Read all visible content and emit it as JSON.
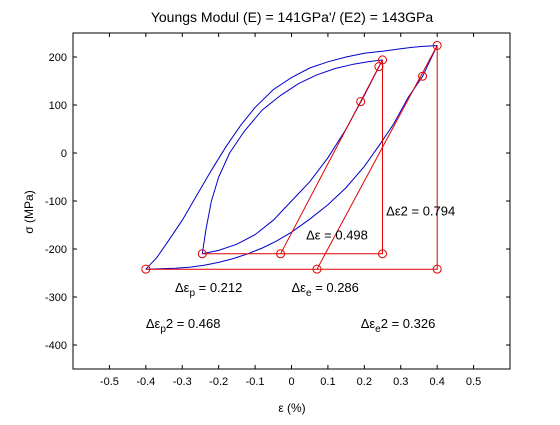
{
  "chart_data": {
    "type": "line",
    "title": "Youngs Modul (E) = 141GPa'/ (E2) = 143GPa",
    "xlabel": "ε (%)",
    "ylabel": "σ (MPa)",
    "xlim": [
      -0.6,
      0.6
    ],
    "ylim": [
      -450,
      250
    ],
    "xticks": [
      -0.5,
      -0.4,
      -0.3,
      -0.2,
      -0.1,
      0,
      0.1,
      0.2,
      0.3,
      0.4,
      0.5
    ],
    "xtick_labels": [
      "-0.5",
      "-0.4",
      "-0.3",
      "-0.2",
      "-0.1",
      "0",
      "0.1",
      "0.2",
      "0.3",
      "0.4",
      "0.5"
    ],
    "yticks": [
      200,
      100,
      0,
      -100,
      -200,
      -300,
      -400
    ],
    "ytick_labels": [
      "200",
      "100",
      "0",
      "-100",
      "-200",
      "-300",
      "-400"
    ],
    "grid": false,
    "colors": {
      "curve": "#0000cc",
      "construction": "#e00000",
      "axes": "#000000"
    },
    "series": [
      {
        "color": "#0000cc",
        "points": [
          [
            -0.4,
            -242
          ],
          [
            -0.37,
            -218
          ],
          [
            -0.34,
            -185
          ],
          [
            -0.3,
            -140
          ],
          [
            -0.26,
            -88
          ],
          [
            -0.22,
            -36
          ],
          [
            -0.18,
            13
          ],
          [
            -0.14,
            57
          ],
          [
            -0.1,
            95
          ],
          [
            -0.05,
            132
          ],
          [
            0.0,
            157
          ],
          [
            0.05,
            177
          ],
          [
            0.1,
            190
          ],
          [
            0.15,
            200
          ],
          [
            0.2,
            208
          ],
          [
            0.25,
            212
          ],
          [
            0.3,
            217
          ],
          [
            0.33,
            220
          ],
          [
            0.36,
            222
          ],
          [
            0.38,
            223
          ],
          [
            0.4,
            224
          ]
        ]
      },
      {
        "color": "#0000cc",
        "points": [
          [
            0.4,
            224
          ],
          [
            0.36,
            160
          ],
          [
            0.32,
            115
          ],
          [
            0.28,
            60
          ],
          [
            0.24,
            15
          ],
          [
            0.2,
            -28
          ],
          [
            0.15,
            -72
          ],
          [
            0.1,
            -108
          ],
          [
            0.05,
            -138
          ],
          [
            0.0,
            -165
          ],
          [
            -0.04,
            -183
          ],
          [
            -0.08,
            -198
          ],
          [
            -0.12,
            -210
          ],
          [
            -0.16,
            -220
          ],
          [
            -0.2,
            -228
          ],
          [
            -0.24,
            -234
          ],
          [
            -0.28,
            -238
          ],
          [
            -0.32,
            -240
          ],
          [
            -0.36,
            -241
          ],
          [
            -0.4,
            -242
          ]
        ]
      },
      {
        "color": "#0000cc",
        "points": [
          [
            -0.245,
            -210
          ],
          [
            -0.235,
            -160
          ],
          [
            -0.22,
            -100
          ],
          [
            -0.2,
            -50
          ],
          [
            -0.17,
            0
          ],
          [
            -0.13,
            45
          ],
          [
            -0.08,
            90
          ],
          [
            -0.03,
            120
          ],
          [
            0.02,
            145
          ],
          [
            0.07,
            163
          ],
          [
            0.12,
            176
          ],
          [
            0.17,
            185
          ],
          [
            0.21,
            190
          ],
          [
            0.25,
            194
          ]
        ]
      },
      {
        "color": "#0000cc",
        "points": [
          [
            0.25,
            194
          ],
          [
            0.2,
            120
          ],
          [
            0.15,
            50
          ],
          [
            0.1,
            -10
          ],
          [
            0.05,
            -60
          ],
          [
            0.0,
            -100
          ],
          [
            -0.05,
            -140
          ],
          [
            -0.1,
            -170
          ],
          [
            -0.15,
            -190
          ],
          [
            -0.2,
            -203
          ],
          [
            -0.245,
            -210
          ]
        ]
      },
      {
        "color": "#e00000",
        "points": [
          [
            -0.4,
            -242
          ],
          [
            0.4,
            -242
          ],
          [
            0.4,
            224
          ]
        ]
      },
      {
        "color": "#e00000",
        "points": [
          [
            0.07,
            -242
          ],
          [
            0.4,
            224
          ]
        ]
      },
      {
        "color": "#e00000",
        "points": [
          [
            -0.245,
            -210
          ],
          [
            0.25,
            -210
          ],
          [
            0.25,
            194
          ]
        ]
      },
      {
        "color": "#e00000",
        "points": [
          [
            -0.03,
            -210
          ],
          [
            0.25,
            194
          ]
        ]
      }
    ],
    "markers": [
      [
        -0.4,
        -242
      ],
      [
        0.07,
        -242
      ],
      [
        0.4,
        -242
      ],
      [
        0.4,
        224
      ],
      [
        0.36,
        160
      ],
      [
        -0.245,
        -210
      ],
      [
        -0.03,
        -210
      ],
      [
        0.25,
        -210
      ],
      [
        0.25,
        194
      ],
      [
        0.24,
        180
      ],
      [
        0.19,
        107
      ]
    ],
    "annotations": [
      {
        "id": "de2",
        "text": "Δε2 = 0.794",
        "x": 0.26,
        "y": -130
      },
      {
        "id": "de",
        "text": "Δε = 0.498",
        "x": 0.04,
        "y": -180
      },
      {
        "id": "dep",
        "text": "Δε",
        "sub": "p",
        "tail": " = 0.212",
        "x": -0.32,
        "y": -290
      },
      {
        "id": "dee",
        "text": "Δε",
        "sub": "e",
        "tail": " = 0.286",
        "x": 0.0,
        "y": -290
      },
      {
        "id": "dep2",
        "text": "Δε",
        "sub": "p",
        "tail": "2 = 0.468",
        "x": -0.4,
        "y": -365
      },
      {
        "id": "dee2",
        "text": "Δε",
        "sub": "e",
        "tail": "2 = 0.326",
        "x": 0.19,
        "y": -365
      }
    ]
  }
}
